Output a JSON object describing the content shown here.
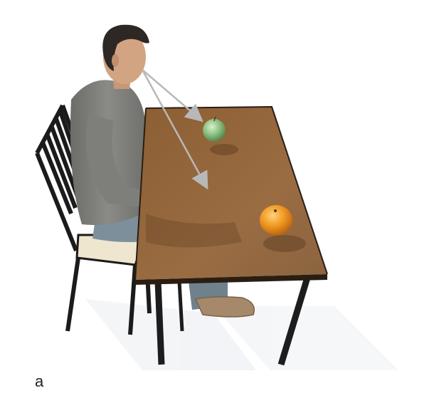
{
  "figure": {
    "panel_label": "a"
  },
  "colors": {
    "background": "#ffffff",
    "table_top": "#8b6238",
    "table_edge": "#2a1d12",
    "table_leg": "#1d1d1d",
    "shirt": "#7e7f7b",
    "jeans": "#7d8f9a",
    "skin": "#d2a482",
    "hair": "#2e2824",
    "apple": "#8ec081",
    "orange": "#f09a23",
    "gaze_arrow": "#b8b8b8",
    "chair": "#1b1b1b",
    "chair_seat": "#efe6cf",
    "boot": "#a6896b"
  },
  "icons": {
    "gaze_arrows": "arrow-icon"
  }
}
